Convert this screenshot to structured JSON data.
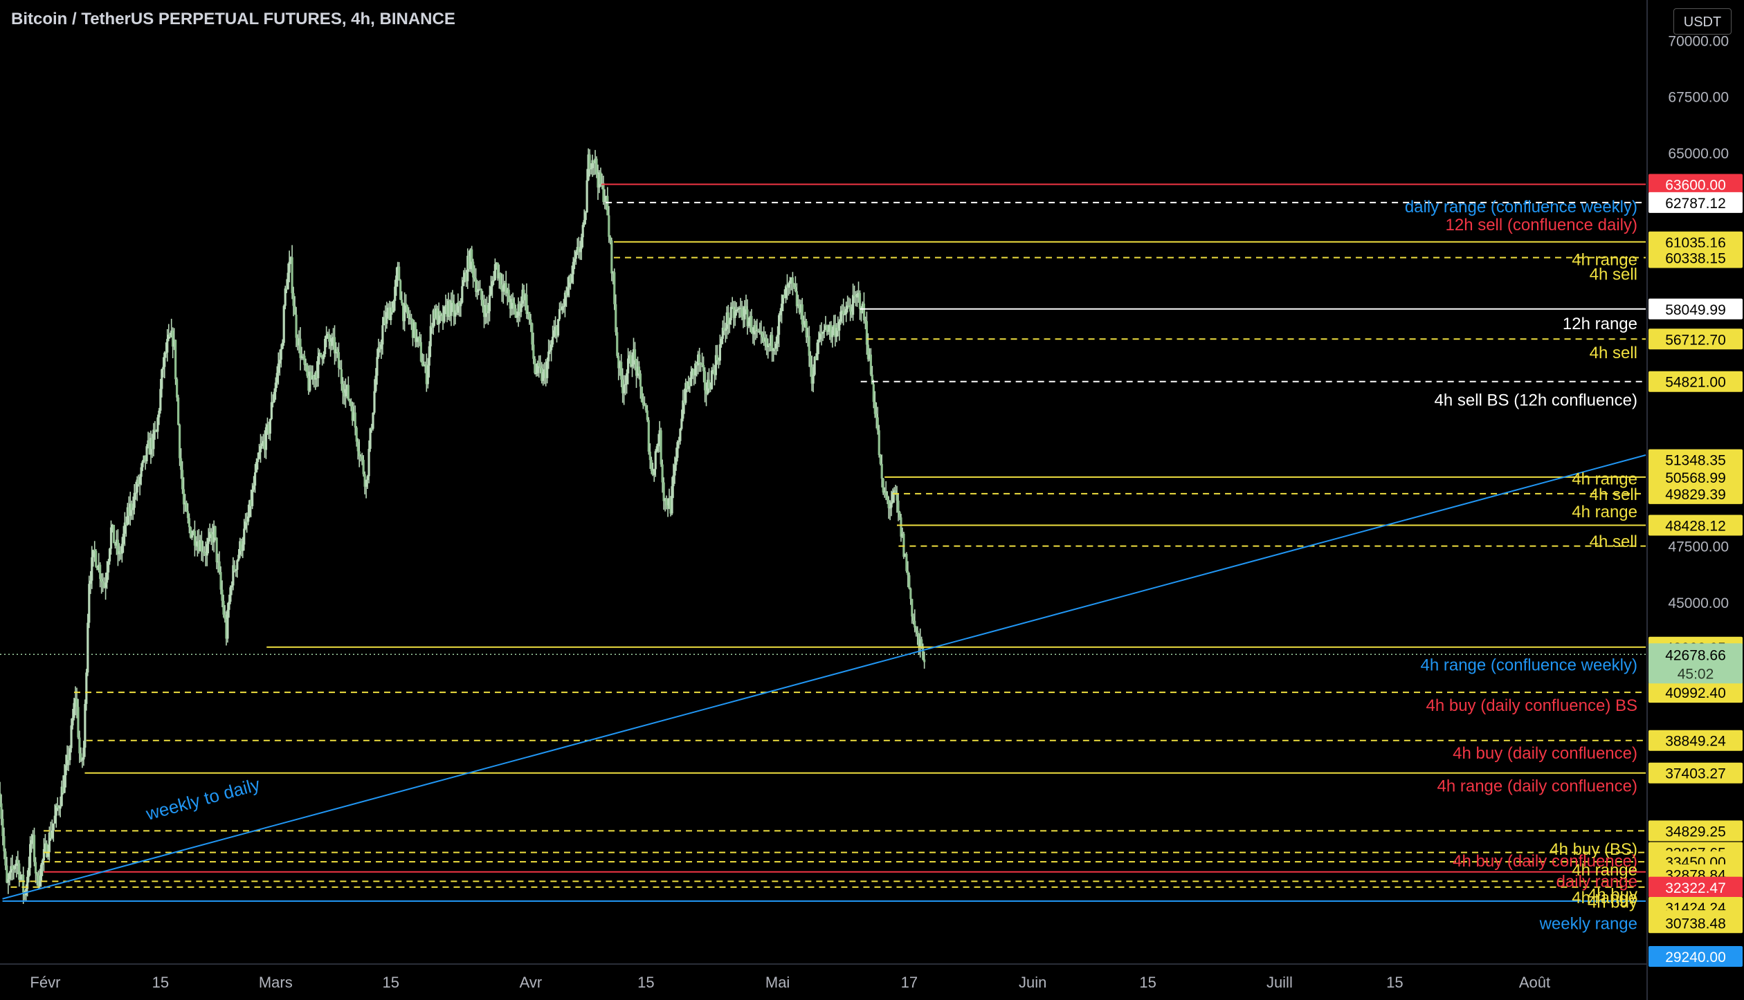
{
  "header": {
    "title": "Bitcoin / TetherUS PERPETUAL FUTURES, 4h, BINANCE",
    "currency_button": "USDT"
  },
  "colors": {
    "background": "#000000",
    "candle": "#b8d8b8",
    "axis_text": "#b2b5be",
    "yellow": "#f0e040",
    "red": "#f23645",
    "white": "#ffffff",
    "blue": "#2196f3",
    "green_tag": "#a5d6a7"
  },
  "chart_data": {
    "type": "candlestick",
    "symbol": "Bitcoin / TetherUS PERPETUAL FUTURES",
    "interval": "4h",
    "exchange": "BINANCE",
    "ylim": [
      27300,
      71800
    ],
    "y_ticks": [
      {
        "value": 70000,
        "label": "70000.00"
      },
      {
        "value": 67500,
        "label": "67500.00"
      },
      {
        "value": 65000,
        "label": "65000.00"
      },
      {
        "value": 47500,
        "label": "47500.00"
      },
      {
        "value": 45000,
        "label": "45000.00"
      }
    ],
    "x_ticks": [
      {
        "day": 32,
        "label": "Févr"
      },
      {
        "day": 46,
        "label": "15"
      },
      {
        "day": 60,
        "label": "Mars"
      },
      {
        "day": 74,
        "label": "15"
      },
      {
        "day": 91,
        "label": "Avr"
      },
      {
        "day": 105,
        "label": "15"
      },
      {
        "day": 121,
        "label": "Mai"
      },
      {
        "day": 137,
        "label": "17"
      },
      {
        "day": 152,
        "label": "Juin"
      },
      {
        "day": 166,
        "label": "15"
      },
      {
        "day": 182,
        "label": "Juill"
      },
      {
        "day": 196,
        "label": "15"
      },
      {
        "day": 213,
        "label": "Août"
      }
    ],
    "xlim_days": [
      26.5,
      226.5
    ],
    "last_price": 42678.66,
    "countdown": "45:02",
    "price_path": [
      [
        26.5,
        36500
      ],
      [
        27.3,
        32300
      ],
      [
        28.5,
        33600
      ],
      [
        29.5,
        31950
      ],
      [
        30.4,
        34600
      ],
      [
        31.0,
        32500
      ],
      [
        32.0,
        33900
      ],
      [
        33.5,
        35800
      ],
      [
        34.5,
        37400
      ],
      [
        35.0,
        38600
      ],
      [
        35.7,
        41000
      ],
      [
        36.3,
        37500
      ],
      [
        36.7,
        38600
      ],
      [
        37.3,
        46000
      ],
      [
        38.0,
        47200
      ],
      [
        39.2,
        45700
      ],
      [
        40.0,
        48200
      ],
      [
        41.0,
        47000
      ],
      [
        42.0,
        48800
      ],
      [
        43.5,
        50500
      ],
      [
        44.5,
        51800
      ],
      [
        45.5,
        52500
      ],
      [
        46.3,
        55500
      ],
      [
        46.9,
        56500
      ],
      [
        47.6,
        56800
      ],
      [
        48.3,
        52000
      ],
      [
        48.8,
        49300
      ],
      [
        49.5,
        48300
      ],
      [
        50.5,
        47800
      ],
      [
        51.5,
        47300
      ],
      [
        52.5,
        48100
      ],
      [
        53.3,
        45600
      ],
      [
        54.0,
        43600
      ],
      [
        54.6,
        46000
      ],
      [
        55.5,
        47200
      ],
      [
        56.6,
        48600
      ],
      [
        57.4,
        50300
      ],
      [
        58.1,
        51700
      ],
      [
        59.1,
        52600
      ],
      [
        59.9,
        54700
      ],
      [
        60.7,
        56200
      ],
      [
        61.2,
        59000
      ],
      [
        61.8,
        60100
      ],
      [
        62.4,
        57300
      ],
      [
        63.2,
        55800
      ],
      [
        64.0,
        54700
      ],
      [
        65.0,
        55400
      ],
      [
        66.1,
        56700
      ],
      [
        67.2,
        56300
      ],
      [
        68.0,
        54900
      ],
      [
        69.2,
        53800
      ],
      [
        70.3,
        51500
      ],
      [
        71.0,
        50300
      ],
      [
        72.2,
        55200
      ],
      [
        73.0,
        57200
      ],
      [
        73.7,
        57900
      ],
      [
        74.3,
        58300
      ],
      [
        74.9,
        59800
      ],
      [
        75.4,
        58000
      ],
      [
        76.3,
        57600
      ],
      [
        77.4,
        56400
      ],
      [
        78.3,
        55000
      ],
      [
        79.1,
        58000
      ],
      [
        80.1,
        57400
      ],
      [
        81.0,
        58200
      ],
      [
        82.0,
        57700
      ],
      [
        82.9,
        59300
      ],
      [
        83.6,
        60400
      ],
      [
        84.6,
        58800
      ],
      [
        85.7,
        57800
      ],
      [
        86.7,
        60100
      ],
      [
        87.7,
        59000
      ],
      [
        88.5,
        58300
      ],
      [
        89.3,
        57700
      ],
      [
        90.1,
        58900
      ],
      [
        90.9,
        57400
      ],
      [
        91.5,
        55300
      ],
      [
        92.6,
        55000
      ],
      [
        93.7,
        56700
      ],
      [
        94.4,
        57600
      ],
      [
        95.6,
        59000
      ],
      [
        96.6,
        60400
      ],
      [
        97.5,
        61600
      ],
      [
        98.0,
        64600
      ],
      [
        98.6,
        64900
      ],
      [
        99.2,
        63800
      ],
      [
        100.1,
        63000
      ],
      [
        101.0,
        59400
      ],
      [
        101.5,
        56100
      ],
      [
        102.1,
        54600
      ],
      [
        103.4,
        56100
      ],
      [
        104.2,
        54700
      ],
      [
        105.1,
        53100
      ],
      [
        105.7,
        50600
      ],
      [
        106.6,
        52600
      ],
      [
        107.2,
        49600
      ],
      [
        108.0,
        49300
      ],
      [
        108.8,
        51700
      ],
      [
        109.5,
        54000
      ],
      [
        110.4,
        54900
      ],
      [
        111.4,
        55800
      ],
      [
        112.3,
        54400
      ],
      [
        112.9,
        55000
      ],
      [
        113.9,
        56200
      ],
      [
        114.7,
        57500
      ],
      [
        115.6,
        57800
      ],
      [
        116.6,
        58000
      ],
      [
        117.6,
        57500
      ],
      [
        118.6,
        56700
      ],
      [
        119.8,
        56300
      ],
      [
        120.8,
        56800
      ],
      [
        121.8,
        58600
      ],
      [
        122.7,
        59100
      ],
      [
        123.6,
        58000
      ],
      [
        124.3,
        57500
      ],
      [
        125.2,
        55000
      ],
      [
        126.0,
        56600
      ],
      [
        126.9,
        57400
      ],
      [
        127.5,
        57000
      ],
      [
        128.4,
        57400
      ],
      [
        129.2,
        57900
      ],
      [
        130.1,
        58200
      ],
      [
        130.9,
        58600
      ],
      [
        131.6,
        57500
      ],
      [
        132.3,
        55300
      ],
      [
        133.0,
        53200
      ],
      [
        133.7,
        50000
      ],
      [
        134.6,
        49300
      ],
      [
        135.3,
        49700
      ],
      [
        136.1,
        47900
      ],
      [
        136.8,
        46200
      ],
      [
        137.5,
        44200
      ],
      [
        138.2,
        43000
      ],
      [
        138.9,
        42680
      ]
    ],
    "levels": [
      {
        "price": 63600.0,
        "tag": "63600.00",
        "tag_bg": "#f23645",
        "tag_fg": "#ffffff",
        "line": "solid",
        "line_color": "#f23645",
        "line_from_day": 99.6
      },
      {
        "price": 62787.12,
        "tag": "62787.12",
        "tag_bg": "#ffffff",
        "tag_fg": "#000000",
        "line": "dashed",
        "line_color": "#ffffff",
        "line_from_day": 100.1
      },
      {
        "price": 61035.16,
        "tag": "61035.16",
        "tag_bg": "#f0e040",
        "tag_fg": "#000000",
        "line": "solid",
        "line_color": "#f0e040",
        "line_from_day": 101.1
      },
      {
        "price": 60338.15,
        "tag": "60338.15",
        "tag_bg": "#f0e040",
        "tag_fg": "#000000",
        "line": "dashed",
        "line_color": "#f0e040",
        "line_from_day": 101.1
      },
      {
        "price": 58049.99,
        "tag": "58049.99",
        "tag_bg": "#ffffff",
        "tag_fg": "#000000",
        "line": "solid",
        "line_color": "#ffffff",
        "line_from_day": 131.0
      },
      {
        "price": 56712.7,
        "tag": "56712.70",
        "tag_bg": "#f0e040",
        "tag_fg": "#000000",
        "line": "dashed",
        "line_color": "#f0e040",
        "line_from_day": 130.5
      },
      {
        "price": 54821.0,
        "tag": "54821.00",
        "tag_bg": "#f0e040",
        "tag_fg": "#000000",
        "line": "dashed",
        "line_color": "#ffffff",
        "line_from_day": 131.1
      },
      {
        "price": 51348.35,
        "tag": "51348.35",
        "tag_bg": "#f0e040",
        "tag_fg": "#000000",
        "line": "none",
        "line_color": "#f0e040",
        "line_from_day": 0
      },
      {
        "price": 50568.99,
        "tag": "50568.99",
        "tag_bg": "#f0e040",
        "tag_fg": "#000000",
        "line": "solid",
        "line_color": "#f0e040",
        "line_from_day": 134.0
      },
      {
        "price": 49829.39,
        "tag": "49829.39",
        "tag_bg": "#f0e040",
        "tag_fg": "#000000",
        "line": "dashed",
        "line_color": "#f0e040",
        "line_from_day": 135.0
      },
      {
        "price": 48428.12,
        "tag": "48428.12",
        "tag_bg": "#f0e040",
        "tag_fg": "#000000",
        "line": "solid",
        "line_color": "#f0e040",
        "line_from_day": 135.5
      },
      {
        "price": 47500.0,
        "tag": "",
        "tag_bg": "",
        "tag_fg": "",
        "line": "dashed",
        "line_color": "#f0e040",
        "line_from_day": 135.7
      },
      {
        "price": 43002.05,
        "tag": "43002.05",
        "tag_bg": "#f0e040",
        "tag_fg": "#000000",
        "line": "solid",
        "line_color": "#f0e040",
        "line_from_day": 58.9
      },
      {
        "price": 40992.4,
        "tag": "40992.40",
        "tag_bg": "#f0e040",
        "tag_fg": "#000000",
        "line": "dashed",
        "line_color": "#f0e040",
        "line_from_day": 35.5
      },
      {
        "price": 38849.24,
        "tag": "38849.24",
        "tag_bg": "#f0e040",
        "tag_fg": "#000000",
        "line": "dashed",
        "line_color": "#f0e040",
        "line_from_day": 37.0
      },
      {
        "price": 37403.27,
        "tag": "37403.27",
        "tag_bg": "#f0e040",
        "tag_fg": "#000000",
        "line": "solid",
        "line_color": "#f0e040",
        "line_from_day": 36.8
      },
      {
        "price": 34829.25,
        "tag": "34829.25",
        "tag_bg": "#f0e040",
        "tag_fg": "#000000",
        "line": "dashed",
        "line_color": "#f0e040",
        "line_from_day": 31.8
      },
      {
        "price": 33867.65,
        "tag": "33867.65",
        "tag_bg": "#f0e040",
        "tag_fg": "#000000",
        "line": "dashed",
        "line_color": "#f0e040",
        "line_from_day": 31.8
      },
      {
        "price": 33450.0,
        "tag": "33450.00",
        "tag_bg": "#f0e040",
        "tag_fg": "#000000",
        "line": "dashed",
        "line_color": "#f0e040",
        "line_from_day": 31.8
      },
      {
        "price": 33000.0,
        "tag": "",
        "tag_bg": "",
        "tag_fg": "",
        "line": "solid",
        "line_color": "#f23645",
        "line_from_day": 31.8
      },
      {
        "price": 32878.84,
        "tag": "32878.84",
        "tag_bg": "#f0e040",
        "tag_fg": "#000000",
        "line": "none",
        "line_color": "#f0e040",
        "line_from_day": 0
      },
      {
        "price": 32580.0,
        "tag": "",
        "tag_bg": "",
        "tag_fg": "",
        "line": "dashed",
        "line_color": "#f0e040",
        "line_from_day": 28.8
      },
      {
        "price": 32322.47,
        "tag": "32322.47",
        "tag_bg": "#f23645",
        "tag_fg": "#ffffff",
        "line": "dashed",
        "line_color": "#f0e040",
        "line_from_day": 27.8
      },
      {
        "price": 31424.24,
        "tag": "31424.24",
        "tag_bg": "#f0e040",
        "tag_fg": "#000000",
        "line": "none",
        "line_color": "#f0e040",
        "line_from_day": 0
      },
      {
        "price": 30835.74,
        "tag": "30835.74",
        "tag_bg": "#f0e040",
        "tag_fg": "#000000",
        "line": "none",
        "line_color": "#f0e040",
        "line_from_day": 0
      },
      {
        "price": 30738.48,
        "tag": "30738.48",
        "tag_bg": "#f0e040",
        "tag_fg": "#000000",
        "line": "none",
        "line_color": "#f0e040",
        "line_from_day": 0
      },
      {
        "price": 29240.0,
        "tag": "29240.00",
        "tag_bg": "#2196f3",
        "tag_fg": "#ffffff",
        "line": "none",
        "line_color": "#2196f3",
        "line_from_day": 0
      },
      {
        "price": 31700.0,
        "tag": "",
        "tag_bg": "",
        "tag_fg": "",
        "line": "solid",
        "line_color": "#2196f3",
        "line_from_day": 26.8
      }
    ],
    "last_price_tag": {
      "price": 42678.66,
      "tag": "42678.66",
      "countdown": "45:02",
      "tag_bg": "#a5d6a7",
      "tag_fg": "#000000"
    },
    "trendline": {
      "color": "#2196f3",
      "from": [
        26.8,
        31800
      ],
      "to": [
        226.5,
        51550
      ],
      "label": "weekly to daily",
      "label_at": [
        44.5,
        35300
      ]
    },
    "annotations": [
      {
        "text": "daily range (confluence weekly)",
        "price": 62600,
        "color": "#2196f3"
      },
      {
        "text": "12h sell (confluence daily)",
        "price": 61800,
        "color": "#f23645"
      },
      {
        "text": "4h range",
        "price": 60240,
        "color": "#f0e040"
      },
      {
        "text": "4h sell",
        "price": 59600,
        "color": "#f0e040"
      },
      {
        "text": "12h range",
        "price": 57400,
        "color": "#ffffff"
      },
      {
        "text": "4h sell",
        "price": 56100,
        "color": "#f0e040"
      },
      {
        "text": "4h sell BS (12h confluence)",
        "price": 54000,
        "color": "#ffffff"
      },
      {
        "text": "4h range",
        "price": 50490,
        "color": "#f0e040"
      },
      {
        "text": "4h sell",
        "price": 49800,
        "color": "#f0e040"
      },
      {
        "text": "4h range",
        "price": 49030,
        "color": "#f0e040"
      },
      {
        "text": "4h sell",
        "price": 47700,
        "color": "#f0e040"
      },
      {
        "text": "4h range (confluence weekly)",
        "price": 42210,
        "color": "#2196f3"
      },
      {
        "text": "4h buy (daily confluence) BS",
        "price": 40410,
        "color": "#f23645"
      },
      {
        "text": "4h buy (daily confluence)",
        "price": 38290,
        "color": "#f23645"
      },
      {
        "text": "4h range (daily confluence)",
        "price": 36830,
        "color": "#f23645"
      },
      {
        "text": "4h buy (BS)",
        "price": 34010,
        "color": "#f0e040"
      },
      {
        "text": "4h buy (daily confluence)",
        "price": 33490,
        "color": "#f23645"
      },
      {
        "text": "4h range",
        "price": 33080,
        "color": "#f0e040"
      },
      {
        "text": "daily range",
        "price": 32580,
        "color": "#f23645"
      },
      {
        "text": "4h buy",
        "price": 32000,
        "color": "#f0e040"
      },
      {
        "text": "4h buy",
        "price": 31660,
        "color": "#f0e040"
      },
      {
        "text": "4h range",
        "price": 31850,
        "color": "#f0e040"
      },
      {
        "text": "weekly range",
        "price": 30700,
        "color": "#2196f3"
      }
    ]
  }
}
